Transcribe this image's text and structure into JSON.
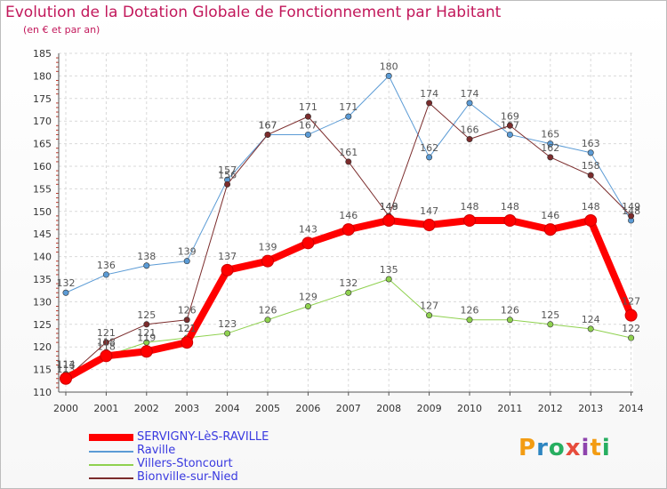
{
  "title": "Evolution de la Dotation Globale de Fonctionnement par Habitant",
  "subtitle": "(en € et par an)",
  "logo": {
    "text": "Proxiti",
    "colors": [
      "#f39c12",
      "#2e86c1",
      "#27ae60",
      "#e74c3c",
      "#8e44ad",
      "#f39c12",
      "#27ae60"
    ]
  },
  "chart_data": {
    "type": "line",
    "title": "Evolution de la Dotation Globale de Fonctionnement par Habitant",
    "subtitle": "(en € et par an)",
    "xlabel": "",
    "ylabel": "",
    "x": [
      "2000",
      "2001",
      "2002",
      "2003",
      "2004",
      "2005",
      "2006",
      "2007",
      "2008",
      "2009",
      "2010",
      "2011",
      "2012",
      "2013",
      "2014"
    ],
    "ylim": [
      110,
      185
    ],
    "yticks": [
      110,
      115,
      120,
      125,
      130,
      135,
      140,
      145,
      150,
      155,
      160,
      165,
      170,
      175,
      180,
      185
    ],
    "grid": true,
    "legend_position": "bottom-left",
    "series": [
      {
        "name": "Raville",
        "color": "#5b9bd5",
        "width": 1,
        "values": [
          132,
          136,
          138,
          139,
          157,
          167,
          167,
          171,
          180,
          162,
          174,
          167,
          165,
          163,
          148
        ]
      },
      {
        "name": "Villers-Stoncourt",
        "color": "#8fd14f",
        "width": 1,
        "values": [
          114,
          118,
          121,
          122,
          123,
          126,
          129,
          132,
          135,
          127,
          126,
          126,
          125,
          124,
          122
        ]
      },
      {
        "name": "Bionville-sur-Nied",
        "color": "#7b2c2c",
        "width": 1,
        "values": [
          113,
          121,
          125,
          126,
          156,
          167,
          171,
          161,
          149,
          174,
          166,
          169,
          162,
          158,
          149
        ]
      },
      {
        "name": "SERVIGNY-LèS-RAVILLE",
        "color": "#ff0000",
        "width": 8,
        "values": [
          113,
          118,
          119,
          121,
          137,
          139,
          143,
          146,
          148,
          147,
          148,
          148,
          146,
          148,
          127
        ]
      }
    ],
    "legend_order": [
      "SERVIGNY-LèS-RAVILLE",
      "Raville",
      "Villers-Stoncourt",
      "Bionville-sur-Nied"
    ]
  }
}
